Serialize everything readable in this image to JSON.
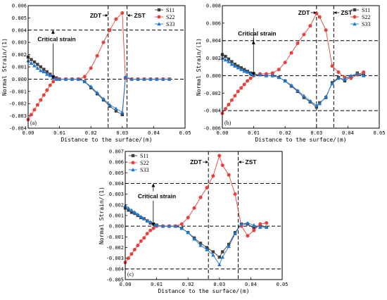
{
  "chart_data": [
    {
      "type": "scatter",
      "panel_label": "(a)",
      "xlabel": "Distance to the surface/(m)",
      "ylabel": "Normal Strain/(1)",
      "xlim": [
        0,
        0.05
      ],
      "ylim": [
        -0.004,
        0.006
      ],
      "xticks": [
        "0.00",
        "0.01",
        "0.02",
        "0.03",
        "0.04",
        "0.05"
      ],
      "yticks": [
        "-0.004",
        "-0.003",
        "-0.002",
        "-0.001",
        "0.000",
        "0.001",
        "0.002",
        "0.003",
        "0.004",
        "0.005",
        "0.006"
      ],
      "legend": {
        "placement": "top-right",
        "entries": [
          "S11",
          "S22",
          "S33"
        ]
      },
      "reference_lines": {
        "horizontal": [
          0.004,
          0.0
        ],
        "vertical": [
          0.0255,
          0.0315
        ]
      },
      "annotations": [
        {
          "text": "ZDT",
          "x": 0.0255,
          "y": 0.0052
        },
        {
          "text": "ZST",
          "x": 0.0315,
          "y": 0.0052
        },
        {
          "text": "Critical strain",
          "x": 0.003,
          "y": 0.0031
        }
      ],
      "series": [
        {
          "name": "S11",
          "color": "#404040",
          "marker": "square",
          "x": [
            0,
            0.001,
            0.002,
            0.003,
            0.004,
            0.005,
            0.006,
            0.007,
            0.008,
            0.009,
            0.01,
            0.012,
            0.014,
            0.016,
            0.018,
            0.02,
            0.022,
            0.024,
            0.026,
            0.028,
            0.03,
            0.031,
            0.033,
            0.035,
            0.037,
            0.039,
            0.041,
            0.043,
            0.045
          ],
          "y": [
            0.0018,
            0.0016,
            0.0014,
            0.0012,
            0.001,
            0.0008,
            0.0006,
            0.0004,
            0.0002,
            0.0001,
            0,
            0,
            0,
            0,
            -0.0002,
            -0.0007,
            -0.0012,
            -0.0017,
            -0.0022,
            -0.0026,
            -0.0029,
            0.0001,
            0,
            0,
            0,
            0,
            0,
            0,
            0
          ]
        },
        {
          "name": "S22",
          "color": "#e8413c",
          "marker": "circle",
          "x": [
            0,
            0.001,
            0.002,
            0.003,
            0.004,
            0.005,
            0.006,
            0.007,
            0.008,
            0.009,
            0.01,
            0.012,
            0.014,
            0.016,
            0.018,
            0.02,
            0.022,
            0.024,
            0.026,
            0.028,
            0.03,
            0.031,
            0.033,
            0.035,
            0.037,
            0.039,
            0.041,
            0.043,
            0.045
          ],
          "y": [
            -0.0033,
            -0.0029,
            -0.0025,
            -0.0021,
            -0.0017,
            -0.0013,
            -0.0009,
            -0.0005,
            -0.0002,
            0,
            0,
            0,
            0,
            0,
            0.0002,
            0.0009,
            0.0019,
            0.003,
            0.004,
            0.0049,
            0.0054,
            0.0001,
            0,
            0,
            0,
            0,
            0,
            0,
            0
          ]
        },
        {
          "name": "S33",
          "color": "#1f78d1",
          "marker": "triangle",
          "x": [
            0,
            0.001,
            0.002,
            0.003,
            0.004,
            0.005,
            0.006,
            0.007,
            0.008,
            0.009,
            0.01,
            0.012,
            0.014,
            0.016,
            0.018,
            0.02,
            0.022,
            0.024,
            0.026,
            0.028,
            0.03,
            0.031,
            0.033,
            0.035,
            0.037,
            0.039,
            0.041,
            0.043,
            0.045
          ],
          "y": [
            0.0015,
            0.0013,
            0.0011,
            0.0009,
            0.0007,
            0.0006,
            0.0004,
            0.0003,
            0.0001,
            0,
            0,
            0,
            0,
            0,
            -0.0002,
            -0.0006,
            -0.0011,
            -0.0016,
            -0.0021,
            -0.0024,
            -0.0027,
            0.0002,
            0,
            0,
            0,
            0,
            0,
            0,
            0
          ]
        }
      ]
    },
    {
      "type": "scatter",
      "panel_label": "(b)",
      "xlabel": "Distance to the surface/(m)",
      "ylabel": "Normal Strain/(1)",
      "xlim": [
        0,
        0.05
      ],
      "ylim": [
        -0.006,
        0.008
      ],
      "xticks": [
        "0.00",
        "0.01",
        "0.02",
        "0.03",
        "0.04",
        "0.05"
      ],
      "yticks": [
        "-0.006",
        "-0.004",
        "-0.002",
        "0.000",
        "0.002",
        "0.004",
        "0.006",
        "0.008"
      ],
      "legend": {
        "placement": "top-right",
        "entries": [
          "S11",
          "S22",
          "S33"
        ]
      },
      "reference_lines": {
        "horizontal": [
          0.004,
          0.0,
          -0.004
        ],
        "vertical": [
          0.03,
          0.0355
        ]
      },
      "annotations": [
        {
          "text": "ZDT",
          "x": 0.03,
          "y": 0.0072
        },
        {
          "text": "ZST",
          "x": 0.0355,
          "y": 0.0072
        },
        {
          "text": "Critical strain",
          "x": 0.005,
          "y": 0.0046
        }
      ],
      "series": [
        {
          "name": "S11",
          "color": "#404040",
          "marker": "square",
          "x": [
            0,
            0.001,
            0.002,
            0.003,
            0.004,
            0.005,
            0.006,
            0.007,
            0.008,
            0.009,
            0.01,
            0.012,
            0.014,
            0.016,
            0.018,
            0.02,
            0.022,
            0.024,
            0.026,
            0.028,
            0.03,
            0.031,
            0.033,
            0.035,
            0.037,
            0.039,
            0.041,
            0.043,
            0.045
          ],
          "y": [
            0.0024,
            0.0022,
            0.0019,
            0.0016,
            0.0013,
            0.0011,
            0.0009,
            0.0007,
            0.0005,
            0.0003,
            0.0002,
            0.0001,
            0,
            0,
            -0.0002,
            -0.0006,
            -0.0012,
            -0.0018,
            -0.0025,
            -0.003,
            -0.0036,
            -0.0031,
            -0.0025,
            -0.0008,
            -0.0002,
            -0.0006,
            -0.0001,
            0.0003,
            0.0001
          ]
        },
        {
          "name": "S22",
          "color": "#e8413c",
          "marker": "circle",
          "x": [
            0,
            0.001,
            0.002,
            0.003,
            0.004,
            0.005,
            0.006,
            0.007,
            0.008,
            0.009,
            0.01,
            0.012,
            0.014,
            0.016,
            0.018,
            0.02,
            0.022,
            0.024,
            0.026,
            0.028,
            0.03,
            0.031,
            0.033,
            0.035,
            0.037,
            0.039,
            0.041,
            0.043,
            0.045
          ],
          "y": [
            -0.0043,
            -0.0038,
            -0.0033,
            -0.0028,
            -0.0023,
            -0.0018,
            -0.0014,
            -0.001,
            -0.0006,
            -0.0003,
            0,
            0.0002,
            0.0002,
            0.0003,
            0.0007,
            0.0015,
            0.0026,
            0.0037,
            0.0047,
            0.0057,
            0.0071,
            0.0067,
            0.0052,
            0.0011,
            0.0004,
            -0.0002,
            -0.0003,
            0.0001,
            0.0004
          ]
        },
        {
          "name": "S33",
          "color": "#1f78d1",
          "marker": "triangle",
          "x": [
            0,
            0.001,
            0.002,
            0.003,
            0.004,
            0.005,
            0.006,
            0.007,
            0.008,
            0.009,
            0.01,
            0.012,
            0.014,
            0.016,
            0.018,
            0.02,
            0.022,
            0.024,
            0.026,
            0.028,
            0.03,
            0.031,
            0.033,
            0.035,
            0.037,
            0.039,
            0.041,
            0.043,
            0.045
          ],
          "y": [
            0.002,
            0.0018,
            0.0016,
            0.0013,
            0.0011,
            0.0009,
            0.0007,
            0.0005,
            0.0004,
            0.0002,
            0.0001,
            0.0001,
            0,
            0,
            -0.0002,
            -0.0006,
            -0.0011,
            -0.0017,
            -0.0023,
            -0.0029,
            -0.0034,
            -0.0032,
            -0.0024,
            -0.0009,
            -0.0003,
            -0.0004,
            0,
            0.0002,
            0
          ]
        }
      ]
    },
    {
      "type": "scatter",
      "panel_label": "(c)",
      "xlabel": "Distance to the surface/(m)",
      "ylabel": "Normal Strain/(1)",
      "xlim": [
        0,
        0.05
      ],
      "ylim": [
        -0.005,
        0.007
      ],
      "xticks": [
        "0.00",
        "0.01",
        "0.02",
        "0.03",
        "0.04",
        "0.05"
      ],
      "yticks": [
        "-0.005",
        "-0.004",
        "-0.003",
        "-0.002",
        "-0.001",
        "0.000",
        "0.001",
        "0.002",
        "0.003",
        "0.004",
        "0.005",
        "0.006",
        "0.007"
      ],
      "legend": {
        "placement": "top-left",
        "entries": [
          "S11",
          "S22",
          "S33"
        ]
      },
      "reference_lines": {
        "horizontal": [
          0.004,
          0.0,
          -0.004
        ],
        "vertical": [
          0.0265,
          0.036
        ]
      },
      "annotations": [
        {
          "text": "ZDT",
          "x": 0.0265,
          "y": 0.006
        },
        {
          "text": "ZST",
          "x": 0.036,
          "y": 0.006
        },
        {
          "text": "Critical strain",
          "x": 0.004,
          "y": 0.0026
        }
      ],
      "series": [
        {
          "name": "S11",
          "color": "#404040",
          "marker": "square",
          "x": [
            0,
            0.001,
            0.002,
            0.003,
            0.004,
            0.005,
            0.006,
            0.007,
            0.008,
            0.009,
            0.01,
            0.012,
            0.014,
            0.016,
            0.018,
            0.02,
            0.022,
            0.024,
            0.026,
            0.028,
            0.03,
            0.031,
            0.033,
            0.035,
            0.037,
            0.039,
            0.041,
            0.043,
            0.045
          ],
          "y": [
            0.0017,
            0.0015,
            0.0013,
            0.0012,
            0.001,
            0.0008,
            0.0007,
            0.0005,
            0.0003,
            0.0002,
            0.0001,
            0,
            0,
            0,
            -0.0002,
            -0.0006,
            -0.0011,
            -0.0016,
            -0.002,
            -0.0024,
            -0.0029,
            -0.0024,
            -0.0017,
            -0.0006,
            0.0002,
            0.0002,
            -0.0002,
            0.0001,
            -0.0001
          ]
        },
        {
          "name": "S22",
          "color": "#e8413c",
          "marker": "circle",
          "x": [
            0,
            0.001,
            0.002,
            0.003,
            0.004,
            0.005,
            0.006,
            0.007,
            0.008,
            0.009,
            0.01,
            0.012,
            0.014,
            0.016,
            0.018,
            0.02,
            0.022,
            0.024,
            0.026,
            0.028,
            0.03,
            0.031,
            0.033,
            0.035,
            0.037,
            0.039,
            0.041,
            0.043,
            0.045
          ],
          "y": [
            -0.0034,
            -0.003,
            -0.0026,
            -0.0022,
            -0.0018,
            -0.0014,
            -0.0011,
            -0.0007,
            -0.0004,
            -0.0002,
            0,
            0,
            0,
            0,
            0.0002,
            0.0008,
            0.0017,
            0.0027,
            0.0036,
            0.0047,
            0.0066,
            0.0057,
            0.0048,
            0.003,
            0,
            -0.0009,
            -0.0004,
            0.0002,
            0.0003
          ]
        },
        {
          "name": "S33",
          "color": "#1f78d1",
          "marker": "triangle",
          "x": [
            0,
            0.001,
            0.002,
            0.003,
            0.004,
            0.005,
            0.006,
            0.007,
            0.008,
            0.009,
            0.01,
            0.012,
            0.014,
            0.016,
            0.018,
            0.02,
            0.022,
            0.024,
            0.026,
            0.028,
            0.03,
            0.031,
            0.033,
            0.035,
            0.037,
            0.039,
            0.041,
            0.043,
            0.045
          ],
          "y": [
            0.0019,
            0.0017,
            0.0015,
            0.0013,
            0.0011,
            0.0009,
            0.0007,
            0.0005,
            0.0004,
            0.0002,
            0.0001,
            0,
            0,
            0,
            -0.0002,
            -0.0006,
            -0.0012,
            -0.0018,
            -0.0022,
            -0.0027,
            -0.0036,
            -0.0029,
            -0.0019,
            -0.0007,
            0.0002,
            0.0003,
            0.0001,
            -0.0001,
            -0.0001
          ]
        }
      ]
    }
  ]
}
